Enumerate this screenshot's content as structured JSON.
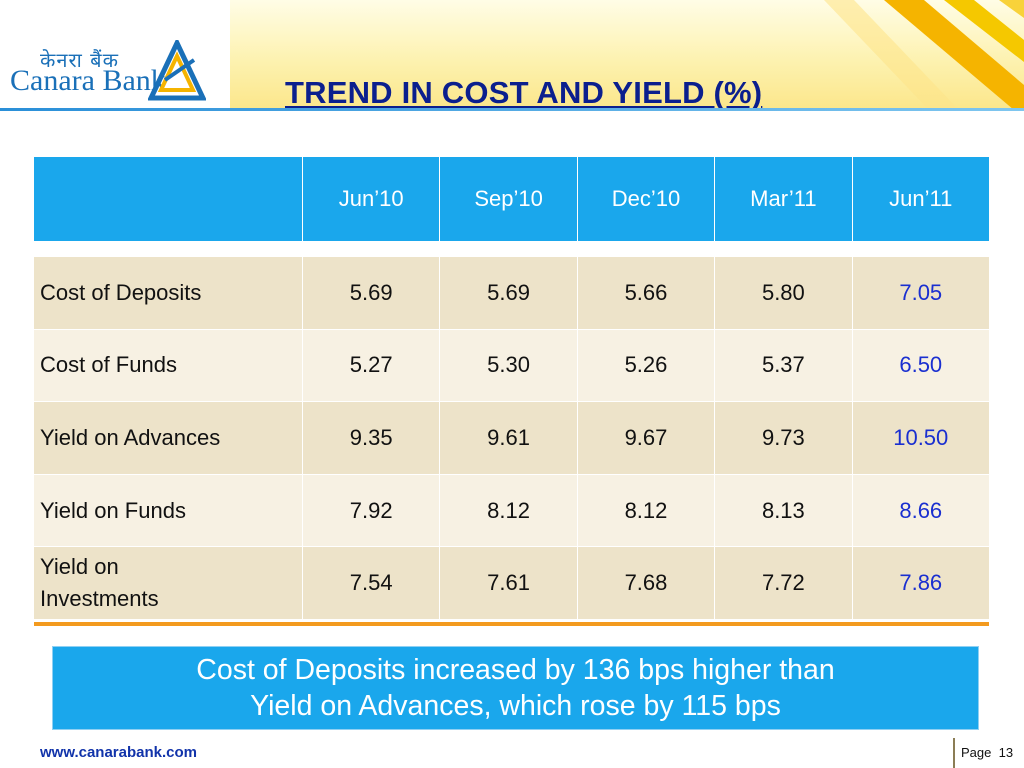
{
  "header": {
    "logo": {
      "hindi_name": "केनरा बैंक",
      "english_name": "Canara Bank"
    },
    "title": "TREND IN COST AND YIELD (%)"
  },
  "table": {
    "columns": [
      "",
      "Jun’10",
      "Sep’10",
      "Dec’10",
      "Mar’11",
      "Jun’11"
    ],
    "rows": [
      {
        "label": "Cost of Deposits",
        "values": [
          "5.69",
          "5.69",
          "5.66",
          "5.80",
          "7.05"
        ]
      },
      {
        "label": "Cost of Funds",
        "values": [
          "5.27",
          "5.30",
          "5.26",
          "5.37",
          "6.50"
        ]
      },
      {
        "label": "Yield on Advances",
        "values": [
          "9.35",
          "9.61",
          "9.67",
          "9.73",
          "10.50"
        ]
      },
      {
        "label": "Yield on Funds",
        "values": [
          "7.92",
          "8.12",
          "8.12",
          "8.13",
          "8.66"
        ]
      },
      {
        "label": "Yield on Investments",
        "values": [
          "7.54",
          "7.61",
          "7.68",
          "7.72",
          "7.86"
        ]
      }
    ]
  },
  "callout": {
    "line1": "Cost of Deposits increased by 136 bps higher than",
    "line2": "Yield on Advances, which rose by 115 bps"
  },
  "footer": {
    "url": "www.canarabank.com",
    "page_label": "Page",
    "page_number": "13"
  },
  "colors": {
    "title": "#0b1f8e",
    "table_header": "#1aa7ec",
    "row_odd": "#ede3c9",
    "row_even": "#f7f1e3",
    "highlight_value": "#1a2fd0",
    "table_bottom_rule": "#f39a1e"
  },
  "icons": {
    "logo_mark": "canara-triangle-logo-icon"
  }
}
